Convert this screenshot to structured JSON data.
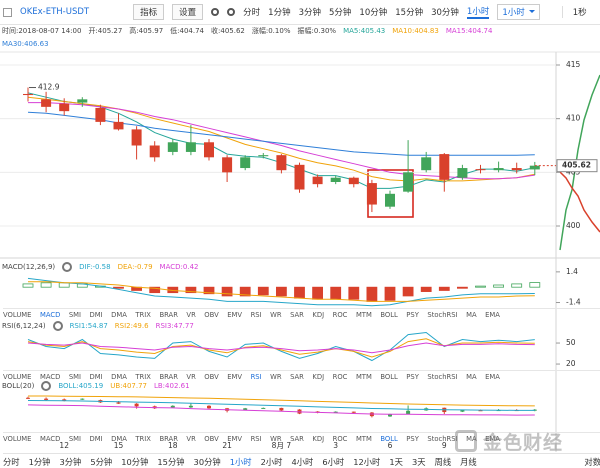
{
  "toolbar": {
    "symbol": "OKEx-ETH-USDT",
    "buttons": [
      "指标",
      "设置"
    ],
    "periods": [
      "分时",
      "1分钟",
      "3分钟",
      "5分钟",
      "10分钟",
      "15分钟",
      "30分钟",
      "1小时"
    ],
    "active_period": 7,
    "dropdown": "1小时",
    "refresh": "1秒"
  },
  "info": [
    "时间:2018-08-07 14:00",
    "开:405.27",
    "高:405.97",
    "低:404.74",
    "收:405.62",
    "涨幅:0.10%",
    "振幅:0.30%"
  ],
  "indicator_tabs": [
    "VOLUME",
    "MACD",
    "SMI",
    "DMI",
    "DMA",
    "TRIX",
    "BRAR",
    "VR",
    "OBV",
    "EMV",
    "RSI",
    "WR",
    "SAR",
    "KDJ",
    "ROC",
    "MTM",
    "BOLL",
    "PSY",
    "StochRSI",
    "MA",
    "EMA"
  ],
  "bottom_bar": {
    "periods": [
      "分时",
      "1分钟",
      "3分钟",
      "5分钟",
      "10分钟",
      "15分钟",
      "30分钟",
      "1小时",
      "2小时",
      "4小时",
      "6小时",
      "12小时",
      "1天",
      "3天",
      "周线",
      "月线"
    ],
    "active": 7,
    "right": "对数"
  },
  "watermark": "金色财经",
  "chart_data": [
    {
      "type": "candlestick",
      "categories": [
        null,
        null,
        "12",
        null,
        null,
        "15",
        null,
        null,
        "18",
        null,
        null,
        "21",
        null,
        null,
        "8月 7",
        null,
        null,
        "3",
        null,
        null,
        "6",
        null,
        null,
        "9",
        null,
        null,
        null,
        null,
        null
      ],
      "open": [
        412.3,
        411.8,
        411.4,
        411.5,
        411.0,
        409.7,
        409.0,
        407.5,
        406.9,
        406.9,
        407.8,
        406.4,
        405.4,
        406.5,
        406.6,
        405.7,
        404.6,
        404.1,
        404.5,
        404.0,
        401.8,
        403.2,
        405.2,
        406.7,
        404.5,
        405.3,
        405.2,
        405.4,
        405.27
      ],
      "high": [
        412.9,
        412.5,
        411.9,
        412.0,
        411.3,
        410.5,
        409.3,
        407.9,
        408.1,
        409.4,
        408.1,
        406.6,
        406.6,
        406.8,
        406.7,
        405.9,
        404.8,
        404.7,
        404.6,
        404.3,
        403.3,
        408.0,
        406.9,
        406.8,
        405.7,
        405.7,
        406.0,
        405.9,
        405.97
      ],
      "low": [
        411.6,
        410.6,
        410.3,
        411.1,
        409.4,
        408.9,
        406.2,
        406.0,
        406.6,
        406.6,
        406.1,
        404.1,
        405.2,
        406.3,
        404.9,
        403.1,
        403.6,
        403.9,
        403.6,
        401.3,
        401.6,
        403.1,
        405.0,
        403.2,
        404.3,
        404.9,
        405.0,
        404.9,
        404.74
      ],
      "close": [
        412.2,
        411.1,
        410.7,
        411.8,
        409.7,
        409.0,
        407.5,
        406.4,
        407.8,
        407.8,
        406.4,
        405.0,
        406.4,
        406.6,
        405.2,
        403.4,
        403.9,
        404.5,
        403.9,
        402.0,
        403.0,
        405.0,
        406.4,
        404.3,
        405.4,
        405.2,
        405.4,
        405.2,
        405.62
      ],
      "up_color": "#41a55a",
      "down_color": "#d9412c",
      "series": [
        {
          "name": "MA5:405.43",
          "color": "#26a69a",
          "values": [
            412.4,
            412.0,
            411.6,
            411.4,
            411.1,
            410.5,
            409.7,
            408.7,
            408.1,
            407.7,
            407.6,
            406.7,
            406.5,
            406.4,
            405.9,
            405.3,
            404.7,
            404.7,
            404.3,
            403.5,
            403.5,
            403.7,
            404.3,
            404.1,
            404.8,
            405.3,
            405.3,
            405.1,
            405.43
          ]
        },
        {
          "name": "MA10:404.83",
          "color": "#f0a30a",
          "values": [
            412.0,
            411.8,
            411.6,
            411.4,
            411.2,
            410.9,
            410.5,
            410.0,
            409.6,
            409.2,
            408.8,
            408.2,
            407.6,
            407.2,
            406.8,
            406.3,
            405.9,
            405.6,
            405.2,
            404.6,
            404.3,
            404.2,
            404.4,
            404.2,
            404.2,
            404.3,
            404.4,
            404.5,
            404.83
          ]
        },
        {
          "name": "MA15:404.74",
          "color": "#d63fd6",
          "values": [
            411.5,
            411.5,
            411.4,
            411.3,
            411.1,
            410.9,
            410.6,
            410.2,
            409.9,
            409.5,
            409.1,
            408.7,
            408.3,
            407.9,
            407.5,
            407.0,
            406.6,
            406.2,
            405.8,
            405.4,
            405.0,
            404.8,
            404.7,
            404.6,
            404.5,
            404.4,
            404.4,
            404.5,
            404.74
          ]
        },
        {
          "name": "MA30:406.63",
          "color": "#2f7fd8",
          "values": [
            410.6,
            410.5,
            410.3,
            410.1,
            409.9,
            409.6,
            409.4,
            409.1,
            408.9,
            408.7,
            408.5,
            408.3,
            408.1,
            407.9,
            407.7,
            407.5,
            407.3,
            407.1,
            406.9,
            406.8,
            406.7,
            406.6,
            406.6,
            406.6,
            406.6,
            406.6,
            406.6,
            406.6,
            406.63
          ]
        }
      ],
      "ylim": [
        397.02,
        416.21
      ],
      "yticks": [
        400,
        405,
        410,
        415
      ],
      "grid": true
    },
    {
      "type": "bar",
      "title": "MACD(12,26,9)",
      "name": "MACD:0.42",
      "name_color": "#d63fd6",
      "values": [
        0.3,
        0.4,
        0.4,
        0.3,
        0.1,
        -0.1,
        -0.3,
        -0.5,
        -0.5,
        -0.5,
        -0.6,
        -0.8,
        -0.8,
        -0.7,
        -0.8,
        -1.0,
        -1.1,
        -1.1,
        -1.1,
        -1.3,
        -1.2,
        -0.8,
        -0.4,
        -0.3,
        -0.1,
        0.1,
        0.2,
        0.3,
        0.42
      ],
      "up_color": "#41a55a",
      "down_color": "#d9412c",
      "series": [
        {
          "name": "DIF:-0.58",
          "color": "#26a6c9",
          "values": [
            0.8,
            0.6,
            0.4,
            0.3,
            0.1,
            -0.2,
            -0.5,
            -0.8,
            -0.9,
            -1.0,
            -1.1,
            -1.3,
            -1.3,
            -1.3,
            -1.4,
            -1.5,
            -1.6,
            -1.6,
            -1.6,
            -1.7,
            -1.6,
            -1.3,
            -1.0,
            -0.9,
            -0.7,
            -0.6,
            -0.6,
            -0.6,
            -0.58
          ]
        },
        {
          "name": "DEA:-0.79",
          "color": "#f0a30a",
          "values": [
            0.5,
            0.5,
            0.4,
            0.4,
            0.3,
            0.2,
            0.0,
            -0.1,
            -0.3,
            -0.4,
            -0.5,
            -0.6,
            -0.7,
            -0.8,
            -0.9,
            -1.0,
            -1.1,
            -1.1,
            -1.2,
            -1.3,
            -1.3,
            -1.3,
            -1.2,
            -1.1,
            -1.0,
            -0.9,
            -0.9,
            -0.8,
            -0.79
          ]
        }
      ],
      "ylim": [
        -1.9,
        2.3
      ],
      "yticks": [
        1.4,
        -1.4
      ],
      "active_tab": 1
    },
    {
      "type": "line",
      "title": "RSI(6,12,24)",
      "series": [
        {
          "name": "RSI1:54.87",
          "color": "#26a6c9",
          "values": [
            55,
            45,
            42,
            55,
            35,
            33,
            30,
            28,
            50,
            52,
            38,
            30,
            48,
            50,
            38,
            28,
            35,
            45,
            38,
            25,
            40,
            62,
            65,
            45,
            55,
            52,
            54,
            52,
            54.87
          ]
        },
        {
          "name": "RSI2:49.6",
          "color": "#f0a30a",
          "values": [
            52,
            47,
            45,
            52,
            42,
            40,
            37,
            35,
            45,
            47,
            40,
            36,
            44,
            46,
            40,
            34,
            37,
            42,
            38,
            30,
            38,
            52,
            56,
            46,
            50,
            50,
            51,
            50,
            49.6
          ]
        },
        {
          "name": "RSI3:47.77",
          "color": "#d63fd6",
          "values": [
            50,
            48,
            47,
            50,
            45,
            44,
            42,
            40,
            44,
            45,
            42,
            40,
            43,
            44,
            42,
            39,
            40,
            42,
            40,
            36,
            40,
            46,
            50,
            46,
            48,
            48,
            49,
            48,
            47.77
          ]
        }
      ],
      "ylim": [
        11.5,
        82.9
      ],
      "yticks": [
        50,
        20
      ],
      "active_tab": 10
    },
    {
      "type": "line",
      "title": "BOLL(20)",
      "series": [
        {
          "name": "BOLL:405.19",
          "color": "#26a6c9",
          "values": [
            410.8,
            410.7,
            410.6,
            410.5,
            410.3,
            410.1,
            409.9,
            409.7,
            409.5,
            409.2,
            409.0,
            408.7,
            408.4,
            408.1,
            407.8,
            407.5,
            407.2,
            406.9,
            406.6,
            406.3,
            406.1,
            405.9,
            405.8,
            405.6,
            405.5,
            405.4,
            405.3,
            405.2,
            405.19
          ]
        },
        {
          "name": "UB:407.77",
          "color": "#f0a30a",
          "values": [
            413.3,
            413.3,
            413.2,
            413.1,
            413.0,
            412.9,
            412.8,
            412.6,
            412.4,
            412.2,
            412.0,
            411.8,
            411.5,
            411.2,
            410.9,
            410.6,
            410.3,
            410.0,
            409.7,
            409.4,
            409.1,
            408.8,
            408.6,
            408.4,
            408.2,
            408.0,
            407.9,
            407.8,
            407.77
          ]
        },
        {
          "name": "LB:402.61",
          "color": "#d63fd6",
          "values": [
            408.3,
            408.1,
            408.0,
            407.9,
            407.6,
            407.3,
            407.0,
            406.8,
            406.6,
            406.2,
            405.9,
            405.6,
            405.3,
            405.0,
            404.7,
            404.4,
            404.1,
            403.8,
            403.5,
            403.2,
            403.1,
            403.0,
            402.9,
            402.8,
            402.8,
            402.7,
            402.7,
            402.6,
            402.61
          ]
        }
      ],
      "ylim": [
        394.2,
        422.3
      ],
      "active_tab": 16
    }
  ]
}
